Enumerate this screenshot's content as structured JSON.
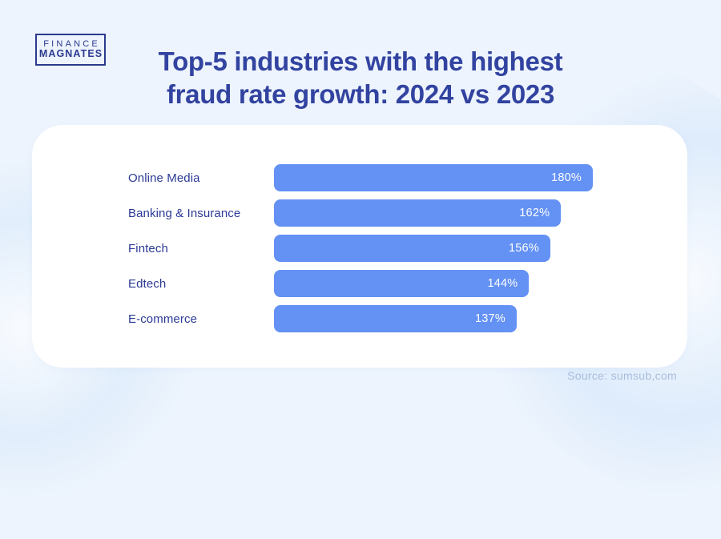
{
  "logo": {
    "line1": "FINANCE",
    "line2": "MAGNATES"
  },
  "title": {
    "line1": "Top-5 industries with the highest",
    "line2": "fraud rate growth: 2024 vs 2023"
  },
  "source": "Source: sumsub,com",
  "colors": {
    "background": "#edf4fd",
    "card": "#ffffff",
    "bar": "#6391f4",
    "title_text": "#3243a0",
    "label_text": "#2b3a96",
    "value_text": "#ffffff",
    "source_text": "#a9bddb"
  },
  "chart_data": {
    "type": "bar",
    "orientation": "horizontal",
    "title": "Top-5 industries with the highest fraud rate growth: 2024 vs 2023",
    "categories": [
      "Online Media",
      "Banking & Insurance",
      "Fintech",
      "Edtech",
      "E-commerce"
    ],
    "values": [
      180,
      162,
      156,
      144,
      137
    ],
    "value_labels": [
      "180%",
      "162%",
      "156%",
      "144%",
      "137%"
    ],
    "xlabel": "",
    "ylabel": "",
    "xlim": [
      0,
      180
    ],
    "grid": false,
    "legend": false
  }
}
